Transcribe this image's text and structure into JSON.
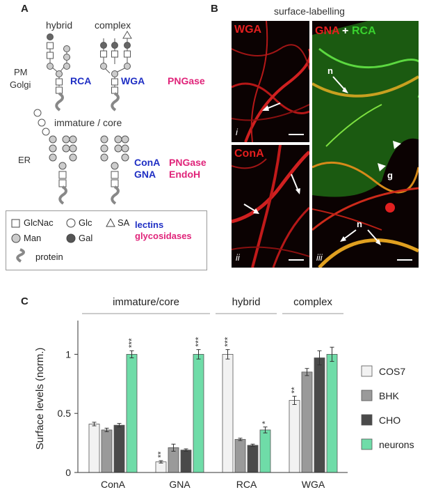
{
  "panel_a": {
    "letter": "A",
    "header_hybrid": "hybrid",
    "header_complex": "complex",
    "compartment_pm": "PM",
    "compartment_golgi": "Golgi",
    "compartment_er": "ER",
    "immature_label": "immature / core",
    "lectin_rca": "RCA",
    "lectin_wga": "WGA",
    "lectin_cona": "ConA",
    "lectin_gna": "GNA",
    "enzyme_pngase_top": "PNGase",
    "enzyme_pngase_bottom": "PNGase",
    "enzyme_endoh": "EndoH",
    "legend": {
      "glcnac": "GlcNac",
      "glc": "Glc",
      "sa": "SA",
      "man": "Man",
      "gal": "Gal",
      "lectins": "lectins",
      "glycosidases": "glycosidases",
      "protein": "protein"
    }
  },
  "panel_b": {
    "letter": "B",
    "title": "surface-labelling",
    "img_i_label": "WGA",
    "img_i_index": "i",
    "img_ii_label": "ConA",
    "img_ii_index": "ii",
    "img_iii_label_a": "GNA",
    "img_iii_plus": "+",
    "img_iii_label_b": "RCA",
    "img_iii_index": "iii",
    "ann_n1": "n",
    "ann_g": "g",
    "ann_n2": "n"
  },
  "panel_c": {
    "letter": "C"
  },
  "colors": {
    "lectin_blue": "#1f2fc4",
    "enzyme_pink": "#e0247a",
    "cos7": "#f2f2f2",
    "bhk": "#9a9a9a",
    "cho": "#4a4a4a",
    "neurons": "#6fdca8",
    "wga_red": "#e41e1e",
    "rca_green": "#39d12e"
  },
  "chart_data": {
    "type": "bar",
    "ylabel": "Surface levels (norm.)",
    "ylim": [
      0,
      1.25
    ],
    "yticks": [
      "0",
      "0.5",
      "1"
    ],
    "categories": [
      "ConA",
      "GNA",
      "RCA",
      "WGA"
    ],
    "groups": [
      {
        "label": "immature/core",
        "categories": [
          "ConA",
          "GNA"
        ]
      },
      {
        "label": "hybrid",
        "categories": [
          "RCA"
        ]
      },
      {
        "label": "complex",
        "categories": [
          "WGA"
        ]
      }
    ],
    "series": [
      {
        "name": "COS7",
        "values": [
          0.41,
          0.09,
          1.0,
          0.61
        ],
        "errors": [
          0.015,
          0.01,
          0.04,
          0.035
        ],
        "sig": [
          "",
          "**",
          "***",
          "**"
        ]
      },
      {
        "name": "BHK",
        "values": [
          0.36,
          0.21,
          0.28,
          0.85
        ],
        "errors": [
          0.015,
          0.03,
          0.01,
          0.03
        ],
        "sig": [
          "",
          "",
          "",
          ""
        ]
      },
      {
        "name": "CHO",
        "values": [
          0.4,
          0.19,
          0.23,
          0.97
        ],
        "errors": [
          0.015,
          0.01,
          0.01,
          0.06
        ],
        "sig": [
          "",
          "",
          "",
          ""
        ]
      },
      {
        "name": "neurons",
        "values": [
          1.0,
          1.0,
          0.36,
          1.0
        ],
        "errors": [
          0.03,
          0.04,
          0.025,
          0.06
        ],
        "sig": [
          "***",
          "***",
          "*",
          ""
        ]
      }
    ]
  }
}
